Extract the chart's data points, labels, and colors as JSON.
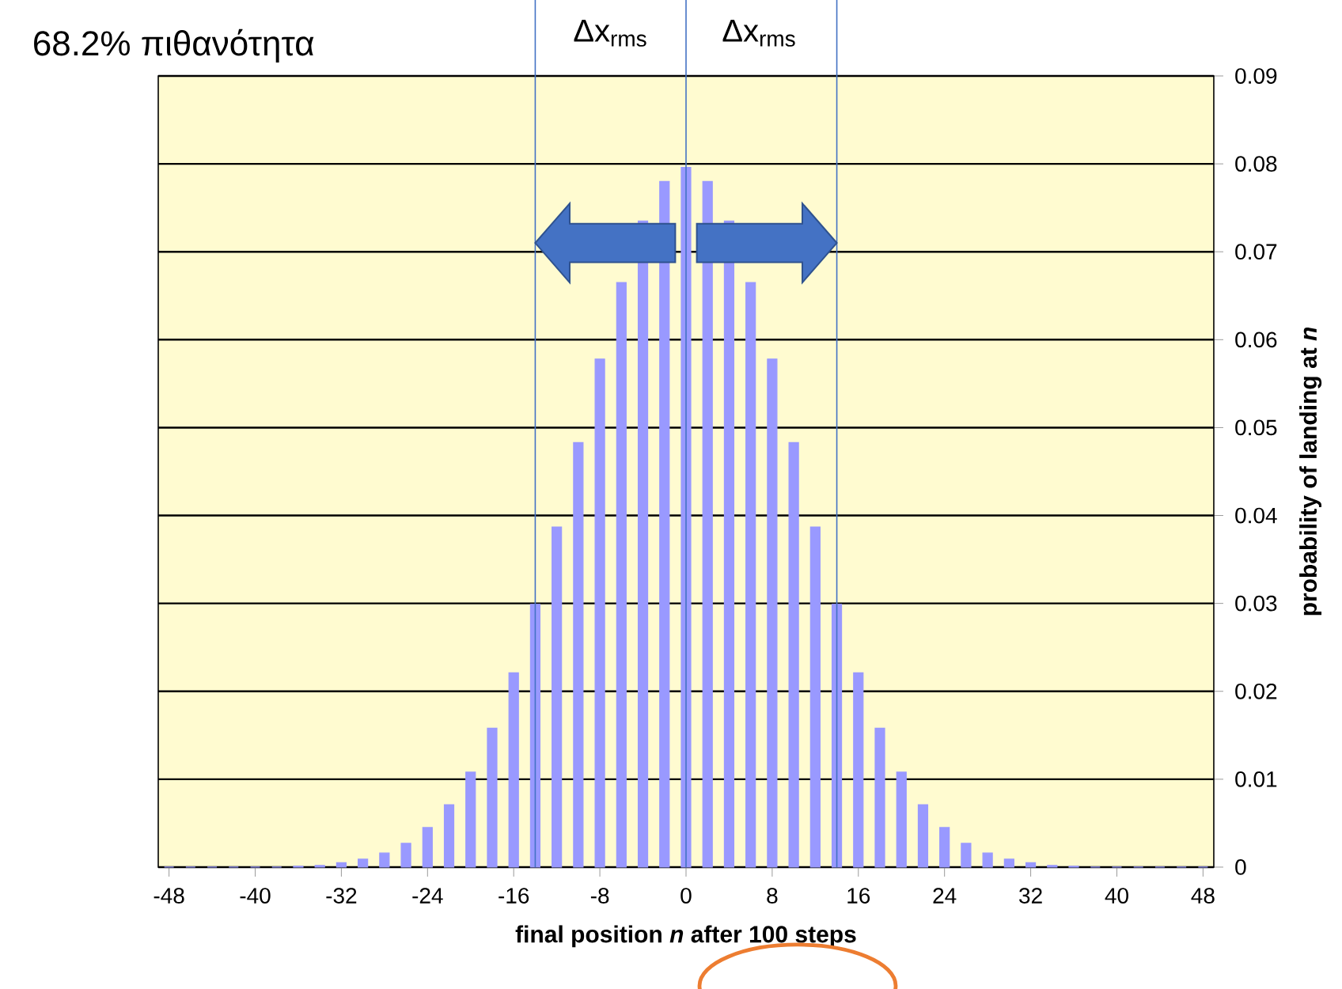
{
  "chart_data": {
    "type": "bar",
    "xlabel": "final position *n* after 100 steps",
    "ylabel": "probability of landing at *n*",
    "x": [
      -48,
      -46,
      -44,
      -42,
      -40,
      -38,
      -36,
      -34,
      -32,
      -30,
      -28,
      -26,
      -24,
      -22,
      -20,
      -18,
      -16,
      -14,
      -12,
      -10,
      -8,
      -6,
      -4,
      -2,
      0,
      2,
      4,
      6,
      8,
      10,
      12,
      14,
      16,
      18,
      20,
      22,
      24,
      26,
      28,
      30,
      32,
      34,
      36,
      38,
      40,
      42,
      44,
      46,
      48
    ],
    "values": [
      0,
      0,
      0,
      0,
      0,
      0,
      0.0001,
      0.0002,
      0.0005,
      0.0009,
      0.0016,
      0.0027,
      0.0045,
      0.0071,
      0.0108,
      0.0158,
      0.0221,
      0.0299,
      0.0387,
      0.0483,
      0.0578,
      0.0665,
      0.0735,
      0.078,
      0.0796,
      0.078,
      0.0735,
      0.0665,
      0.0578,
      0.0483,
      0.0387,
      0.0299,
      0.0221,
      0.0158,
      0.0108,
      0.0071,
      0.0045,
      0.0027,
      0.0016,
      0.0009,
      0.0005,
      0.0002,
      0.0001,
      0,
      0,
      0,
      0,
      0,
      0
    ],
    "color": "#9999ff",
    "xlim": [
      -49,
      49
    ],
    "xticks": [
      -48,
      -40,
      -32,
      -24,
      -16,
      -8,
      0,
      8,
      16,
      24,
      32,
      40,
      48
    ],
    "ylim": [
      0,
      0.09
    ],
    "yticks": [
      0,
      0.01,
      0.02,
      0.03,
      0.04,
      0.05,
      0.06,
      0.07,
      0.08,
      0.09
    ],
    "grid": "y",
    "ref_lines": [
      {
        "axis": "x",
        "value": -14,
        "color": "#4472c4"
      },
      {
        "axis": "x",
        "value": 0,
        "color": "#4472c4"
      },
      {
        "axis": "x",
        "value": 14,
        "color": "#4472c4"
      }
    ],
    "annotations": [
      "68.2% πιθανότητα",
      "Δx$_{rms}$",
      "Δx$_{rms}$"
    ]
  }
}
